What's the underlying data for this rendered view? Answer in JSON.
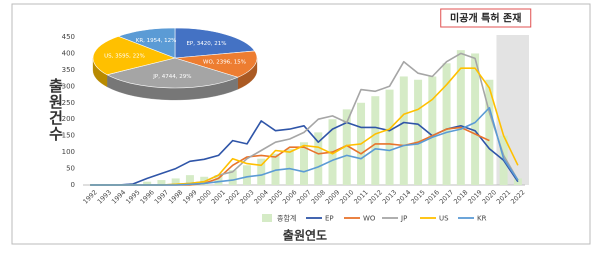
{
  "chart_data": [
    {
      "type": "combo",
      "y_label": "출원건수",
      "x_label": "출원연도",
      "annotation": "미공개 특허 존재",
      "highlight": {
        "from": "2021",
        "to": "2022",
        "color": "#e3e3e3"
      },
      "categories": [
        "1992",
        "1993",
        "1994",
        "1995",
        "1996",
        "1997",
        "1998",
        "1999",
        "2000",
        "2001",
        "2002",
        "2003",
        "2004",
        "2005",
        "2006",
        "2007",
        "2008",
        "2009",
        "2010",
        "2011",
        "2012",
        "2013",
        "2014",
        "2015",
        "2016",
        "2017",
        "2018",
        "2019",
        "2020",
        "2021",
        "2022"
      ],
      "ylim": [
        0,
        450
      ],
      "yticks": [
        0,
        50,
        100,
        150,
        200,
        250,
        300,
        350,
        400,
        450
      ],
      "series": [
        {
          "name": "종합계",
          "kind": "bar",
          "color": "#d5ebc6",
          "values": [
            0,
            0,
            2,
            5,
            10,
            15,
            20,
            30,
            25,
            30,
            45,
            60,
            80,
            95,
            110,
            130,
            160,
            200,
            230,
            250,
            270,
            290,
            330,
            320,
            330,
            370,
            410,
            400,
            320,
            150,
            20
          ]
        },
        {
          "name": "EP",
          "kind": "line",
          "color": "#2f55a8",
          "values": [
            0,
            0,
            0,
            3,
            20,
            35,
            50,
            72,
            78,
            90,
            135,
            125,
            195,
            165,
            170,
            180,
            130,
            170,
            190,
            175,
            175,
            165,
            190,
            185,
            150,
            170,
            180,
            165,
            110,
            75,
            10
          ]
        },
        {
          "name": "WO",
          "kind": "line",
          "color": "#e8742c",
          "values": [
            0,
            0,
            0,
            0,
            0,
            0,
            0,
            0,
            5,
            20,
            60,
            85,
            90,
            85,
            115,
            115,
            95,
            100,
            120,
            95,
            125,
            125,
            120,
            130,
            150,
            170,
            175,
            155,
            135,
            null,
            null
          ]
        },
        {
          "name": "JP",
          "kind": "line",
          "color": "#a6a6a6",
          "values": [
            0,
            0,
            0,
            0,
            0,
            0,
            2,
            5,
            10,
            30,
            40,
            80,
            105,
            130,
            140,
            160,
            200,
            210,
            190,
            290,
            285,
            300,
            375,
            340,
            330,
            375,
            400,
            385,
            220,
            90,
            15
          ]
        },
        {
          "name": "US",
          "kind": "line",
          "color": "#ffc000",
          "values": [
            0,
            0,
            0,
            0,
            0,
            0,
            2,
            5,
            10,
            30,
            80,
            65,
            60,
            105,
            100,
            120,
            115,
            95,
            120,
            125,
            155,
            170,
            215,
            230,
            260,
            305,
            355,
            355,
            295,
            150,
            60
          ]
        },
        {
          "name": "KR",
          "kind": "line",
          "color": "#5b9bd5",
          "values": [
            0,
            0,
            0,
            0,
            0,
            0,
            0,
            2,
            5,
            10,
            15,
            25,
            30,
            45,
            50,
            40,
            55,
            75,
            90,
            80,
            110,
            105,
            120,
            125,
            145,
            160,
            170,
            190,
            235,
            80,
            15
          ]
        }
      ]
    },
    {
      "type": "pie",
      "categories": [
        "EP",
        "WO",
        "JP",
        "US",
        "KR"
      ],
      "values": [
        3420,
        2396,
        4744,
        3595,
        1954
      ],
      "value_labels": [
        "EP, 3420, 21%",
        "WO, 2396, 15%",
        "JP, 4744, 29%",
        "US, 3595, 22%",
        "KR, 1954, 12%"
      ],
      "colors": [
        "#4472c4",
        "#ed7d31",
        "#a5a5a5",
        "#ffc000",
        "#5b9bd5"
      ]
    }
  ]
}
